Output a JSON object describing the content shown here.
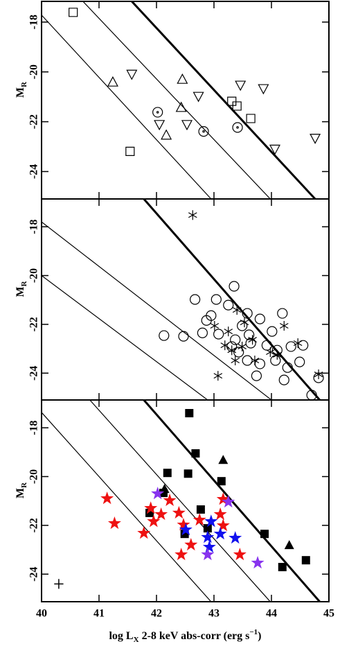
{
  "chart_data": [
    {
      "type": "scatter",
      "xlim": [
        40,
        45
      ],
      "ylim": [
        -25.1,
        -17.17
      ],
      "xticks": [
        40,
        41,
        42,
        43,
        44,
        45
      ],
      "yticks": [
        -18,
        -20,
        -22,
        -24
      ],
      "show_xtick_labels": false,
      "ylabel": [
        "M",
        "R"
      ],
      "reference_lines": [
        {
          "x": [
            41.57,
            44.76
          ],
          "y": [
            -17.17,
            -25.1
          ],
          "width": 3
        },
        {
          "x": [
            40.72,
            43.98
          ],
          "y": [
            -17.17,
            -25.1
          ],
          "width": 1.2
        },
        {
          "x": [
            40,
            42.95
          ],
          "y": [
            -17.72,
            -25.1
          ],
          "width": 1.2
        }
      ],
      "series": [
        {
          "marker": "square",
          "filled": false,
          "color": "#000000",
          "x": [
            40.55,
            43.31,
            43.4,
            43.64,
            41.54
          ],
          "values": [
            -17.61,
            -21.18,
            -21.37,
            -21.87,
            -23.19
          ]
        },
        {
          "marker": "triangle-up",
          "filled": false,
          "color": "#000000",
          "x": [
            41.24,
            42.45,
            42.43,
            42.17
          ],
          "values": [
            -20.43,
            -20.32,
            -21.45,
            -22.56
          ]
        },
        {
          "marker": "triangle-down",
          "filled": false,
          "color": "#000000",
          "x": [
            41.57,
            42.73,
            43.46,
            43.86,
            42.05,
            42.53,
            44.06,
            44.76
          ],
          "values": [
            -20.07,
            -20.96,
            -20.51,
            -20.65,
            -22.09,
            -22.09,
            -23.08,
            -22.64
          ]
        },
        {
          "marker": "circle-dot",
          "filled": false,
          "color": "#000000",
          "x": [
            42.02,
            42.82,
            43.41
          ],
          "values": [
            -21.62,
            -22.39,
            -22.23
          ]
        }
      ]
    },
    {
      "type": "scatter",
      "xlim": [
        40,
        45
      ],
      "ylim": [
        -25.1,
        -16.86
      ],
      "xticks": [
        40,
        41,
        42,
        43,
        44,
        45
      ],
      "yticks": [
        -18,
        -20,
        -22,
        -24
      ],
      "show_xtick_labels": false,
      "ylabel": [
        "M",
        "R"
      ],
      "reference_lines": [
        {
          "x": [
            41.78,
            44.84
          ],
          "y": [
            -16.86,
            -25.1
          ],
          "width": 3
        },
        {
          "x": [
            40,
            44.0
          ],
          "y": [
            -17.8,
            -25.1
          ],
          "width": 1.2
        },
        {
          "x": [
            40,
            42.89
          ],
          "y": [
            -20.0,
            -25.1
          ],
          "width": 1.2
        }
      ],
      "series": [
        {
          "marker": "asterisk",
          "filled": false,
          "color": "#000000",
          "x": [
            42.63,
            43.4,
            43.53,
            44.22,
            43.25,
            43.01,
            43.67,
            43.49,
            43.31,
            43.98,
            44.1,
            44.46,
            43.71,
            43.19,
            44.82,
            43.07,
            43.37
          ],
          "values": [
            -17.52,
            -21.41,
            -21.92,
            -22.06,
            -22.29,
            -22.06,
            -22.63,
            -22.91,
            -23.06,
            -23.14,
            -23.25,
            -22.77,
            -23.48,
            -22.86,
            -24.05,
            -24.11,
            -23.48
          ]
        },
        {
          "marker": "circle",
          "filled": false,
          "color": "#000000",
          "x": [
            43.35,
            43.04,
            43.25,
            42.67,
            42.95,
            42.87,
            43.49,
            43.8,
            44.19,
            44.01,
            43.58,
            42.47,
            42.13,
            42.8,
            43.08,
            43.37,
            43.61,
            43.31,
            43.43,
            43.64,
            43.92,
            44.1,
            44.34,
            44.55,
            43.58,
            43.8,
            44.07,
            44.28,
            44.49,
            43.74,
            44.22,
            44.82,
            44.7
          ],
          "values": [
            -20.44,
            -20.98,
            -21.21,
            -20.98,
            -21.64,
            -21.84,
            -22.06,
            -21.78,
            -21.55,
            -22.29,
            -21.55,
            -22.49,
            -22.46,
            -22.35,
            -22.4,
            -22.63,
            -22.43,
            -22.91,
            -23.14,
            -22.77,
            -22.86,
            -23.06,
            -22.91,
            -22.86,
            -23.48,
            -23.62,
            -23.48,
            -23.77,
            -23.54,
            -24.11,
            -24.28,
            -24.19,
            -24.9
          ]
        }
      ]
    },
    {
      "type": "scatter",
      "xlim": [
        40,
        45
      ],
      "ylim": [
        -25.13,
        -16.86
      ],
      "xticks": [
        40,
        41,
        42,
        43,
        44,
        45
      ],
      "yticks": [
        -18,
        -20,
        -22,
        -24
      ],
      "show_xtick_labels": true,
      "ylabel": [
        "M",
        "R"
      ],
      "xlabel": [
        "log L",
        "X",
        " 2-8 keV abs-corr (erg s",
        "−1",
        ")"
      ],
      "reference_lines": [
        {
          "x": [
            41.78,
            44.84
          ],
          "y": [
            -16.86,
            -25.13
          ],
          "width": 3
        },
        {
          "x": [
            40.84,
            43.98
          ],
          "y": [
            -16.86,
            -25.13
          ],
          "width": 1.2
        },
        {
          "x": [
            40,
            42.95
          ],
          "y": [
            -17.37,
            -25.13
          ],
          "width": 1.2
        }
      ],
      "error_bar": {
        "x": 40.3,
        "y": -24.4,
        "xerr": 0.08,
        "yerr": 0.2
      },
      "series": [
        {
          "marker": "square",
          "filled": true,
          "color": "#000000",
          "x": [
            42.57,
            42.68,
            42.19,
            42.55,
            43.13,
            42.12,
            42.77,
            41.88,
            42.49,
            42.89,
            43.88,
            44.19,
            44.6
          ],
          "values": [
            -17.4,
            -19.05,
            -19.85,
            -19.88,
            -20.19,
            -20.67,
            -21.35,
            -21.49,
            -22.35,
            -22.12,
            -22.35,
            -23.71,
            -23.43
          ]
        },
        {
          "marker": "triangle-up",
          "filled": true,
          "color": "#000000",
          "x": [
            43.16,
            42.14,
            44.31
          ],
          "values": [
            -19.34,
            -20.53,
            -22.83
          ]
        },
        {
          "marker": "star",
          "filled": true,
          "color": "#ee1111",
          "x": [
            41.14,
            41.9,
            42.23,
            41.27,
            41.95,
            41.78,
            42.08,
            42.39,
            42.47,
            42.75,
            43.16,
            43.11,
            43.16,
            42.43,
            42.6,
            43.45
          ],
          "values": [
            -20.9,
            -21.3,
            -20.98,
            -21.92,
            -21.84,
            -22.32,
            -21.55,
            -21.49,
            -21.98,
            -21.78,
            -20.93,
            -21.55,
            -22.01,
            -23.2,
            -22.8,
            -23.2
          ]
        },
        {
          "marker": "star",
          "filled": true,
          "color": "#1111ee",
          "x": [
            42.51,
            42.89,
            42.92,
            43.11,
            43.37,
            42.95
          ],
          "values": [
            -22.18,
            -22.49,
            -22.89,
            -22.35,
            -22.52,
            -21.84
          ]
        },
        {
          "marker": "star",
          "filled": true,
          "color": "#8833ee",
          "x": [
            42.02,
            43.25,
            42.89,
            43.76
          ],
          "values": [
            -20.7,
            -21.04,
            -23.2,
            -23.54
          ]
        }
      ]
    }
  ]
}
